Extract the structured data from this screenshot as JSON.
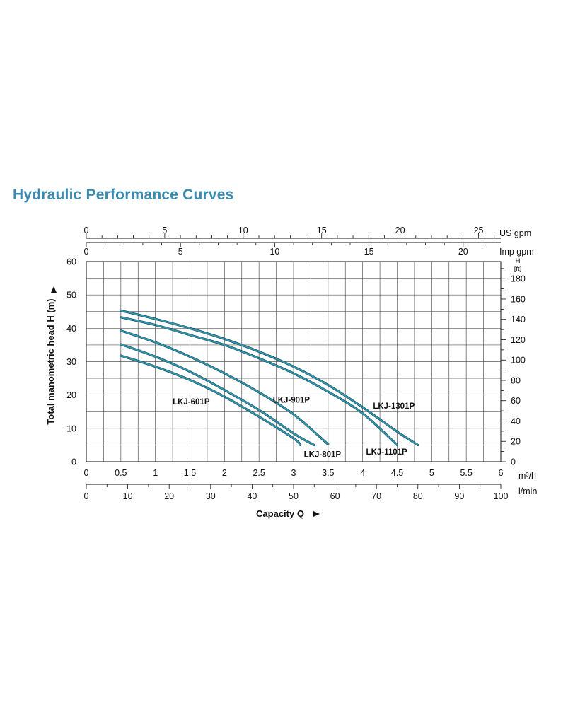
{
  "page": {
    "title": "Hydraulic Performance Curves"
  },
  "chart_data": {
    "type": "line",
    "title": "Hydraulic Performance Curves",
    "xlabel": "Capacity Q",
    "ylabel": "Total manometric head H (m)",
    "x_unit": "m³/h",
    "ylim": [
      0,
      60
    ],
    "xlim": [
      0,
      6
    ],
    "grid": true,
    "x_ticks": [
      0,
      0.5,
      1,
      1.5,
      2,
      2.5,
      3,
      3.5,
      4,
      4.5,
      5,
      5.5,
      6
    ],
    "y_ticks": [
      0,
      10,
      20,
      30,
      40,
      50,
      60
    ],
    "secondary_axes": {
      "us_gpm": {
        "label": "US gpm",
        "ticks": [
          0,
          5,
          10,
          15,
          20,
          25
        ],
        "per_m3h": 4.403
      },
      "imp_gpm": {
        "label": "Imp gpm",
        "ticks": [
          0,
          5,
          10,
          15,
          20
        ],
        "per_m3h": 3.666
      },
      "lmin": {
        "label": "l/min",
        "ticks": [
          0,
          10,
          20,
          30,
          40,
          50,
          60,
          70,
          80,
          90,
          100
        ],
        "per_m3h": 16.667
      },
      "ft": {
        "label": "H",
        "sublabel": "[ft]",
        "ticks": [
          0,
          20,
          40,
          60,
          80,
          100,
          120,
          140,
          160,
          180
        ],
        "per_m": 3.281
      }
    },
    "series": [
      {
        "name": "LKJ-601P",
        "x": [
          0.5,
          1.0,
          1.5,
          2.0,
          2.5,
          3.0,
          3.1
        ],
        "y": [
          31.8,
          28.5,
          24.5,
          19.5,
          13.5,
          7.0,
          5.0
        ]
      },
      {
        "name": "LKJ-801P",
        "x": [
          0.5,
          1.0,
          1.5,
          2.0,
          2.5,
          3.0,
          3.25,
          3.3
        ],
        "y": [
          35.2,
          31.5,
          27.0,
          21.5,
          15.5,
          8.5,
          5.5,
          5.0
        ]
      },
      {
        "name": "LKJ-901P",
        "x": [
          0.5,
          1.0,
          1.5,
          2.0,
          2.5,
          3.0,
          3.5
        ],
        "y": [
          39.3,
          35.8,
          31.5,
          26.5,
          20.8,
          14.2,
          5.2
        ]
      },
      {
        "name": "LKJ-1101P",
        "x": [
          0.5,
          1.0,
          1.5,
          2.0,
          2.5,
          3.0,
          3.5,
          4.0,
          4.5
        ],
        "y": [
          43.3,
          41.0,
          38.0,
          35.0,
          31.0,
          26.5,
          21.0,
          14.5,
          5.0
        ]
      },
      {
        "name": "LKJ-1301P",
        "x": [
          0.5,
          1.0,
          1.5,
          2.0,
          2.5,
          3.0,
          3.5,
          4.0,
          4.5,
          4.8
        ],
        "y": [
          45.3,
          42.8,
          40.0,
          36.8,
          33.0,
          28.5,
          23.0,
          16.3,
          9.0,
          5.0
        ]
      }
    ],
    "curve_labels": [
      {
        "series": "LKJ-601P",
        "text": "LKJ-601P",
        "x": 1.25,
        "y": 18.0
      },
      {
        "series": "LKJ-901P",
        "text": "LKJ-901P",
        "x": 2.7,
        "y": 18.5
      },
      {
        "series": "LKJ-1301P",
        "text": "LKJ-1301P",
        "x": 4.15,
        "y": 16.8
      },
      {
        "series": "LKJ-801P",
        "text": "LKJ-801P",
        "x": 3.15,
        "y": 2.2
      },
      {
        "series": "LKJ-1101P",
        "text": "LKJ-1101P",
        "x": 4.05,
        "y": 3.0
      }
    ],
    "colors": {
      "curve": "#2f9cb4",
      "grid": "#555555",
      "axis": "#111111",
      "title": "#3a8bb0"
    }
  }
}
